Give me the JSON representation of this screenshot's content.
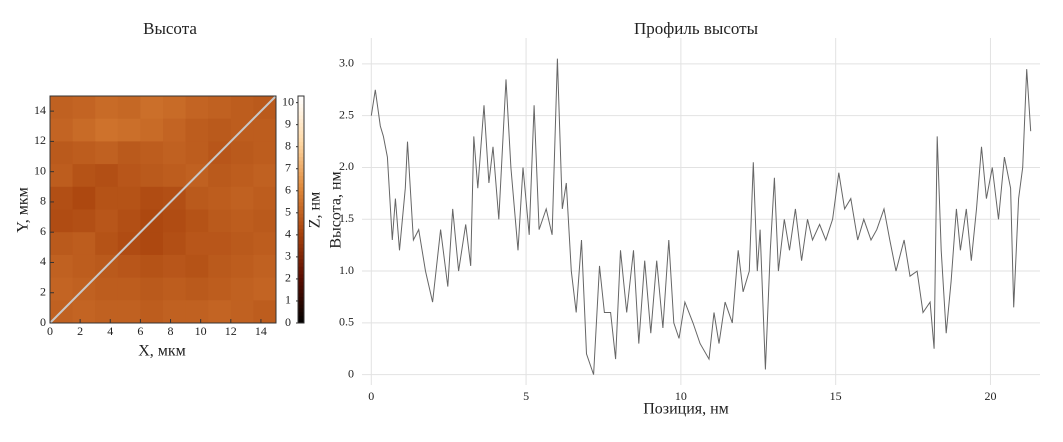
{
  "chart_data": [
    {
      "type": "heatmap",
      "title": "Высота",
      "xlabel": "X, мкм",
      "ylabel": "Y, мкм",
      "zlabel": "Z, нм",
      "xlim": [
        0,
        15
      ],
      "ylim": [
        0,
        15
      ],
      "xticks": [
        0,
        2,
        4,
        6,
        8,
        10,
        12,
        14
      ],
      "yticks": [
        0,
        2,
        4,
        6,
        8,
        10,
        12,
        14
      ],
      "zlim": [
        0,
        10.3
      ],
      "zticks": [
        0,
        1,
        2,
        3,
        4,
        5,
        6,
        7,
        8,
        9,
        10
      ],
      "colormap": [
        "#000000",
        "#5a0c00",
        "#a8420c",
        "#e08a3c",
        "#ffd9a6",
        "#ffffff"
      ],
      "z": [
        [
          5.0,
          5.1,
          5.3,
          5.2,
          5.4,
          5.3,
          5.1,
          5.0,
          4.9,
          4.8
        ],
        [
          5.1,
          5.3,
          5.5,
          5.4,
          5.3,
          5.1,
          4.9,
          4.8,
          4.9,
          4.9
        ],
        [
          4.8,
          4.9,
          5.0,
          4.8,
          4.9,
          5.0,
          4.9,
          4.7,
          4.8,
          4.9
        ],
        [
          4.9,
          4.6,
          4.5,
          4.7,
          4.8,
          4.9,
          5.0,
          4.8,
          4.9,
          5.0
        ],
        [
          4.5,
          4.3,
          4.6,
          4.6,
          4.4,
          4.5,
          4.8,
          4.9,
          5.0,
          4.9
        ],
        [
          4.4,
          4.5,
          4.7,
          4.5,
          4.3,
          4.4,
          4.6,
          4.8,
          4.9,
          4.8
        ],
        [
          4.8,
          4.9,
          4.6,
          4.4,
          4.3,
          4.5,
          4.7,
          4.7,
          4.8,
          4.9
        ],
        [
          5.0,
          4.9,
          4.8,
          4.7,
          4.6,
          4.7,
          4.6,
          4.8,
          4.9,
          5.0
        ],
        [
          5.1,
          5.0,
          4.9,
          4.9,
          4.8,
          4.9,
          4.8,
          4.9,
          5.0,
          5.1
        ],
        [
          5.0,
          5.1,
          5.0,
          5.0,
          4.9,
          5.0,
          5.0,
          5.1,
          5.0,
          4.9
        ]
      ],
      "profile_line": {
        "x": [
          0,
          15
        ],
        "y": [
          0,
          15
        ],
        "color": "#c8c8c8"
      }
    },
    {
      "type": "line",
      "title": "Профиль высоты",
      "xlabel": "Позиция, нм",
      "ylabel": "Высота, нм",
      "xlim": [
        -0.3,
        21.6
      ],
      "ylim": [
        -0.1,
        3.25
      ],
      "xticks": [
        0,
        5,
        10,
        15,
        20
      ],
      "yticks": [
        0,
        0.5,
        {
          "value": 1,
          "label": "1.0"
        },
        1.5,
        {
          "value": 2,
          "label": "2.0"
        },
        2.5,
        {
          "value": 3,
          "label": "3.0"
        }
      ],
      "grid": true,
      "color": "#666666",
      "x": [
        0,
        0.13,
        0.29,
        0.39,
        0.52,
        0.68,
        0.78,
        0.91,
        1.1,
        1.17,
        1.36,
        1.53,
        1.75,
        1.98,
        2.24,
        2.47,
        2.63,
        2.82,
        3.05,
        3.21,
        3.31,
        3.44,
        3.64,
        3.8,
        3.93,
        4.12,
        4.35,
        4.51,
        4.74,
        4.9,
        5.1,
        5.26,
        5.42,
        5.65,
        5.84,
        6.01,
        6.17,
        6.3,
        6.46,
        6.62,
        6.79,
        6.95,
        7.18,
        7.37,
        7.53,
        7.73,
        7.89,
        8.05,
        8.25,
        8.47,
        8.64,
        8.83,
        9.03,
        9.22,
        9.42,
        9.61,
        9.77,
        9.94,
        10.13,
        10.39,
        10.62,
        10.91,
        11.07,
        11.23,
        11.43,
        11.66,
        11.85,
        12.01,
        12.21,
        12.34,
        12.47,
        12.56,
        12.73,
        12.89,
        13.02,
        13.15,
        13.34,
        13.51,
        13.7,
        13.9,
        14.09,
        14.25,
        14.48,
        14.68,
        14.9,
        15.1,
        15.29,
        15.49,
        15.71,
        15.91,
        16.14,
        16.33,
        16.56,
        16.75,
        16.95,
        17.21,
        17.4,
        17.63,
        17.82,
        18.05,
        18.18,
        18.28,
        18.41,
        18.57,
        18.73,
        18.9,
        19.03,
        19.22,
        19.38,
        19.55,
        19.71,
        19.87,
        20.06,
        20.26,
        20.45,
        20.65,
        20.75,
        20.91,
        21.04,
        21.17,
        21.3
      ],
      "values": [
        2.5,
        2.75,
        2.4,
        2.3,
        2.1,
        1.3,
        1.7,
        1.2,
        1.8,
        2.25,
        1.3,
        1.4,
        1.0,
        0.7,
        1.4,
        0.85,
        1.6,
        1.0,
        1.45,
        1.05,
        2.3,
        1.8,
        2.6,
        1.85,
        2.2,
        1.5,
        2.85,
        2.0,
        1.2,
        2.0,
        1.35,
        2.6,
        1.4,
        1.6,
        1.35,
        3.05,
        1.6,
        1.85,
        1.0,
        0.6,
        1.3,
        0.2,
        0.0,
        1.05,
        0.6,
        0.6,
        0.15,
        1.2,
        0.6,
        1.2,
        0.3,
        1.1,
        0.4,
        1.1,
        0.45,
        1.3,
        0.5,
        0.35,
        0.7,
        0.5,
        0.3,
        0.15,
        0.6,
        0.3,
        0.7,
        0.5,
        1.2,
        0.8,
        1.0,
        2.05,
        1.0,
        1.4,
        0.05,
        1.2,
        1.9,
        1.0,
        1.5,
        1.2,
        1.6,
        1.1,
        1.5,
        1.3,
        1.45,
        1.3,
        1.5,
        1.95,
        1.6,
        1.7,
        1.3,
        1.5,
        1.3,
        1.4,
        1.6,
        1.3,
        1.0,
        1.3,
        0.95,
        1.0,
        0.6,
        0.7,
        0.25,
        2.3,
        1.2,
        0.4,
        0.9,
        1.6,
        1.2,
        1.6,
        1.1,
        1.6,
        2.2,
        1.7,
        2.0,
        1.5,
        2.1,
        1.8,
        0.65,
        1.7,
        2.0,
        2.95,
        2.35
      ]
    }
  ]
}
